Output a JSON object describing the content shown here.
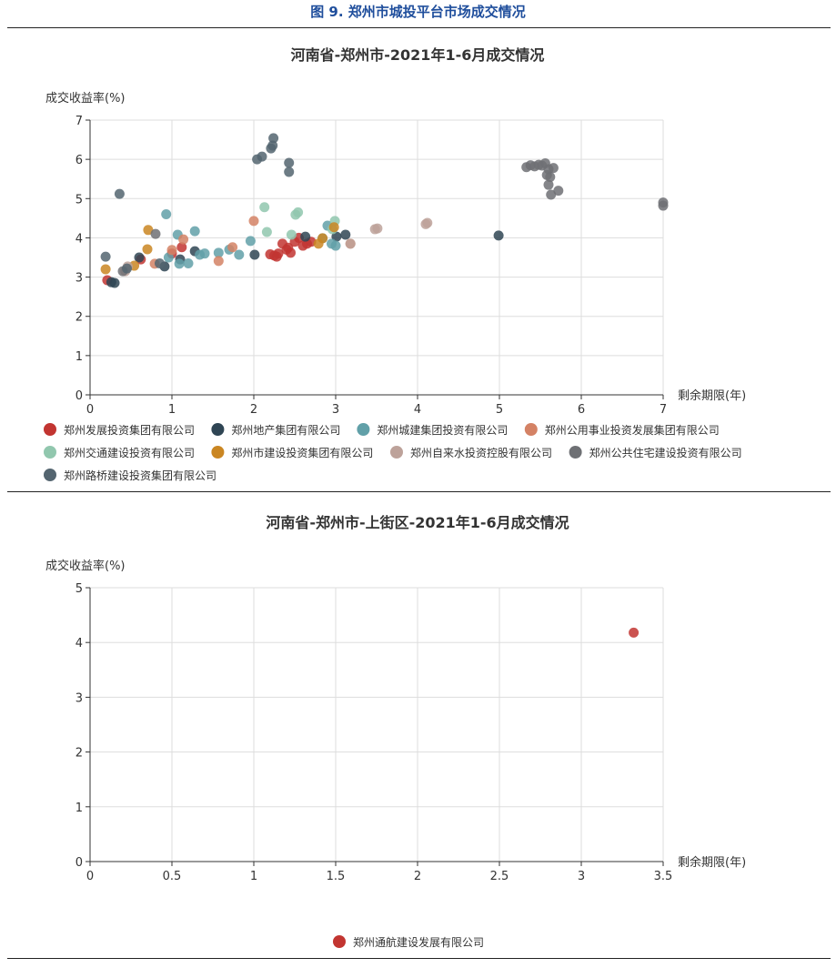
{
  "figure_title": "图 9. 郑州市城投平台市场成交情况",
  "chart_data": [
    {
      "type": "scatter",
      "title": "河南省-郑州市-2021年1-6月成交情况",
      "xlabel": "剩余期限(年)",
      "ylabel": "成交收益率(%)",
      "xlim": [
        0,
        7
      ],
      "ylim": [
        0,
        7
      ],
      "xticks": [
        0,
        1,
        2,
        3,
        4,
        5,
        6,
        7
      ],
      "yticks": [
        0,
        1,
        2,
        3,
        4,
        5,
        6,
        7
      ],
      "grid": true,
      "legend_position": "bottom",
      "series": [
        {
          "name": "郑州发展投资集团有限公司",
          "color": "#c23531",
          "points": [
            [
              0.21,
              2.92
            ],
            [
              1.12,
              3.76
            ],
            [
              0.62,
              3.45
            ],
            [
              2.2,
              3.58
            ],
            [
              2.25,
              3.55
            ],
            [
              2.3,
              3.6
            ],
            [
              2.35,
              3.85
            ],
            [
              2.4,
              3.7
            ],
            [
              2.45,
              3.62
            ],
            [
              2.5,
              3.9
            ],
            [
              2.55,
              4.0
            ],
            [
              2.6,
              3.8
            ],
            [
              2.65,
              3.85
            ],
            [
              2.7,
              3.9
            ],
            [
              2.42,
              3.75
            ],
            [
              2.28,
              3.52
            ],
            [
              1.0,
              3.6
            ]
          ]
        },
        {
          "name": "郑州地产集团有限公司",
          "color": "#2f4554",
          "points": [
            [
              4.99,
              4.06
            ],
            [
              3.12,
              4.08
            ],
            [
              2.01,
              3.57
            ],
            [
              1.28,
              3.66
            ],
            [
              0.26,
              2.87
            ],
            [
              0.3,
              2.85
            ],
            [
              0.91,
              3.27
            ],
            [
              3.01,
              4.03
            ],
            [
              2.63,
              4.03
            ],
            [
              0.6,
              3.5
            ],
            [
              1.1,
              3.45
            ]
          ]
        },
        {
          "name": "郑州城建集团投资有限公司",
          "color": "#61a0a8",
          "points": [
            [
              0.93,
              4.6
            ],
            [
              1.28,
              4.17
            ],
            [
              1.07,
              4.08
            ],
            [
              1.09,
              3.34
            ],
            [
              1.34,
              3.57
            ],
            [
              1.57,
              3.62
            ],
            [
              1.82,
              3.57
            ],
            [
              1.96,
              3.92
            ],
            [
              2.9,
              4.31
            ],
            [
              3.0,
              3.8
            ],
            [
              0.96,
              3.5
            ],
            [
              1.2,
              3.35
            ],
            [
              2.84,
              3.99
            ],
            [
              1.4,
              3.6
            ],
            [
              1.7,
              3.7
            ],
            [
              2.95,
              3.85
            ]
          ]
        },
        {
          "name": "郑州公用事业投资发展集团有限公司",
          "color": "#d48265",
          "points": [
            [
              2.0,
              4.43
            ],
            [
              1.14,
              3.96
            ],
            [
              1.57,
              3.41
            ],
            [
              1.74,
              3.76
            ],
            [
              1.0,
              3.69
            ],
            [
              3.18,
              3.85
            ],
            [
              0.79,
              3.34
            ]
          ]
        },
        {
          "name": "郑州交通建设投资有限公司",
          "color": "#91c7ae",
          "points": [
            [
              2.13,
              4.78
            ],
            [
              2.51,
              4.59
            ],
            [
              2.54,
              4.65
            ],
            [
              2.16,
              4.15
            ],
            [
              2.99,
              4.43
            ],
            [
              2.46,
              4.08
            ],
            [
              2.96,
              4.22
            ]
          ]
        },
        {
          "name": "郑州市建设投资集团有限公司",
          "color": "#ca8622",
          "points": [
            [
              0.71,
              4.2
            ],
            [
              0.7,
              3.71
            ],
            [
              0.19,
              3.2
            ],
            [
              0.54,
              3.29
            ],
            [
              2.84,
              3.99
            ],
            [
              2.98,
              4.27
            ],
            [
              2.79,
              3.85
            ]
          ]
        },
        {
          "name": "郑州自来水投资控股有限公司",
          "color": "#bda29a",
          "points": [
            [
              3.51,
              4.24
            ],
            [
              3.48,
              4.22
            ],
            [
              4.12,
              4.38
            ],
            [
              4.1,
              4.35
            ],
            [
              3.18,
              3.85
            ],
            [
              0.46,
              3.27
            ],
            [
              0.43,
              3.15
            ]
          ]
        },
        {
          "name": "郑州公共住宅建设投资有限公司",
          "color": "#6e7074",
          "points": [
            [
              5.33,
              5.8
            ],
            [
              5.38,
              5.85
            ],
            [
              5.43,
              5.82
            ],
            [
              5.48,
              5.86
            ],
            [
              5.52,
              5.84
            ],
            [
              5.56,
              5.9
            ],
            [
              5.6,
              5.75
            ],
            [
              5.62,
              5.55
            ],
            [
              5.6,
              5.35
            ],
            [
              5.63,
              5.1
            ],
            [
              5.66,
              5.78
            ],
            [
              5.72,
              5.2
            ],
            [
              5.58,
              5.6
            ],
            [
              7.0,
              4.9
            ],
            [
              7.0,
              4.82
            ],
            [
              0.4,
              3.15
            ],
            [
              0.8,
              4.1
            ]
          ]
        },
        {
          "name": "郑州路桥建设投资集团有限公司",
          "color": "#546570",
          "points": [
            [
              0.36,
              5.12
            ],
            [
              2.04,
              6.0
            ],
            [
              2.1,
              6.07
            ],
            [
              2.21,
              6.28
            ],
            [
              2.24,
              6.54
            ],
            [
              2.23,
              6.35
            ],
            [
              2.43,
              5.91
            ],
            [
              2.43,
              5.68
            ],
            [
              0.19,
              3.52
            ],
            [
              0.45,
              3.22
            ],
            [
              0.85,
              3.35
            ]
          ]
        }
      ]
    },
    {
      "type": "scatter",
      "title": "河南省-郑州市-上街区-2021年1-6月成交情况",
      "xlabel": "剩余期限(年)",
      "ylabel": "成交收益率(%)",
      "xlim": [
        0,
        3.5
      ],
      "ylim": [
        0,
        5
      ],
      "xticks": [
        0,
        0.5,
        1,
        1.5,
        2,
        2.5,
        3,
        3.5
      ],
      "yticks": [
        0,
        1,
        2,
        3,
        4,
        5
      ],
      "grid": true,
      "legend_position": "bottom",
      "series": [
        {
          "name": "郑州通航建设发展有限公司",
          "color": "#c23531",
          "points": [
            [
              3.32,
              4.18
            ]
          ]
        }
      ]
    }
  ]
}
